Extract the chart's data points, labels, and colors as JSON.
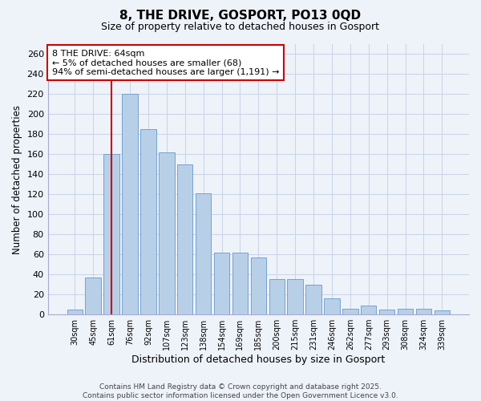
{
  "title1": "8, THE DRIVE, GOSPORT, PO13 0QD",
  "title2": "Size of property relative to detached houses in Gosport",
  "xlabel": "Distribution of detached houses by size in Gosport",
  "ylabel": "Number of detached properties",
  "categories": [
    "30sqm",
    "45sqm",
    "61sqm",
    "76sqm",
    "92sqm",
    "107sqm",
    "123sqm",
    "138sqm",
    "154sqm",
    "169sqm",
    "185sqm",
    "200sqm",
    "215sqm",
    "231sqm",
    "246sqm",
    "262sqm",
    "277sqm",
    "293sqm",
    "308sqm",
    "324sqm",
    "339sqm"
  ],
  "values": [
    5,
    37,
    160,
    220,
    185,
    162,
    150,
    121,
    62,
    62,
    57,
    35,
    35,
    30,
    16,
    6,
    9,
    5,
    6,
    6,
    4
  ],
  "bar_color": "#b8cfe8",
  "bar_edge_color": "#6699cc",
  "vline_index": 2,
  "vline_color": "#cc0000",
  "annotation_text": "8 THE DRIVE: 64sqm\n← 5% of detached houses are smaller (68)\n94% of semi-detached houses are larger (1,191) →",
  "annotation_box_color": "#ffffff",
  "annotation_box_edge_color": "#cc0000",
  "ylim": [
    0,
    270
  ],
  "yticks": [
    0,
    20,
    40,
    60,
    80,
    100,
    120,
    140,
    160,
    180,
    200,
    220,
    240,
    260
  ],
  "grid_color": "#c8d4e8",
  "footer1": "Contains HM Land Registry data © Crown copyright and database right 2025.",
  "footer2": "Contains public sector information licensed under the Open Government Licence v3.0.",
  "bg_color": "#eef2f9"
}
